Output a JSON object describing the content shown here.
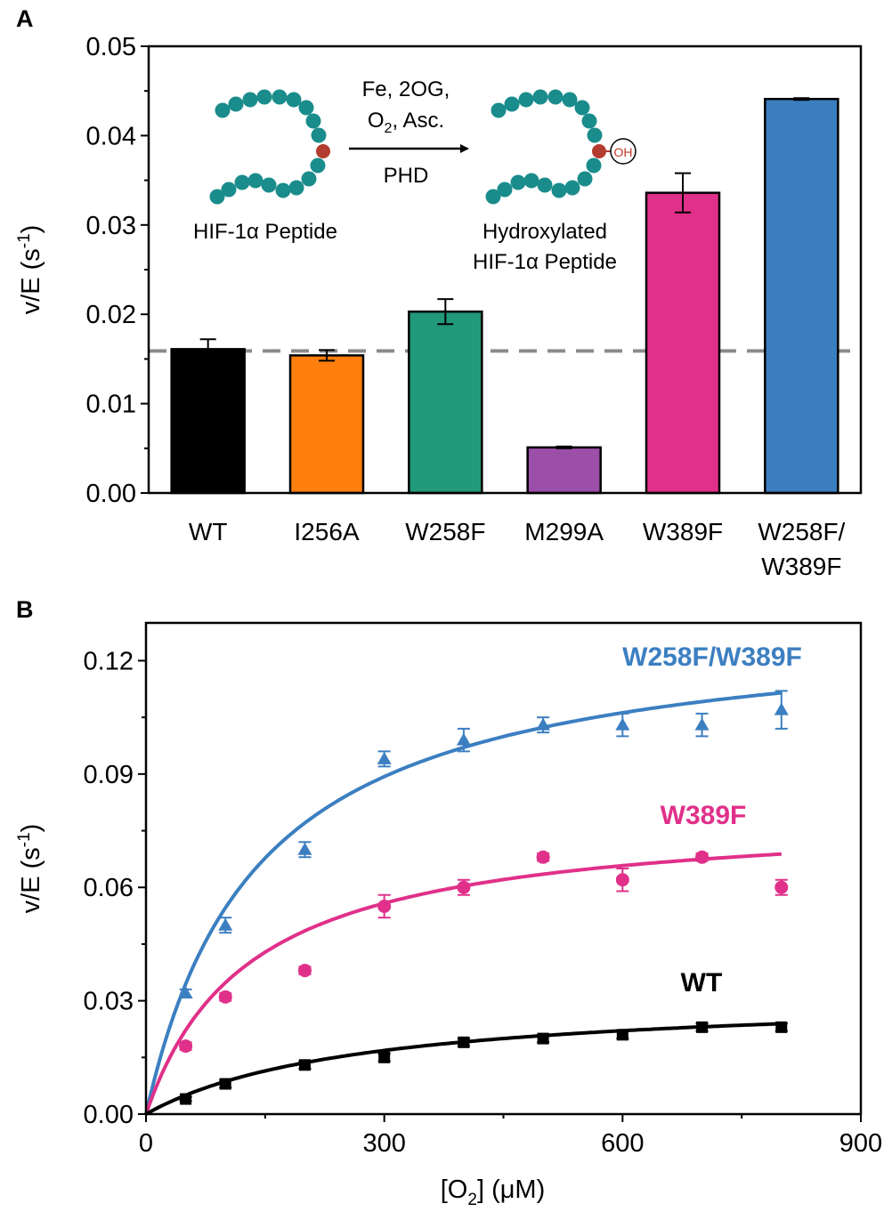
{
  "chart_data": [
    {
      "panel": "A",
      "type": "bar",
      "ylabel": "v/E (s",
      "ylabel_sup": "-1",
      "ylabel_close": ")",
      "ylim": [
        0,
        0.05
      ],
      "yticks": [
        "0.00",
        "0.01",
        "0.02",
        "0.03",
        "0.04",
        "0.05"
      ],
      "categories": [
        "WT",
        "I256A",
        "W258F",
        "M299A",
        "W389F",
        "W258F/W389F"
      ],
      "category_lines": [
        [
          "WT"
        ],
        [
          "I256A"
        ],
        [
          "W258F"
        ],
        [
          "M299A"
        ],
        [
          "W389F"
        ],
        [
          "W258F/",
          "W389F"
        ]
      ],
      "values": [
        0.0161,
        0.0154,
        0.0203,
        0.0051,
        0.0336,
        0.0441
      ],
      "errors": [
        0.0011,
        0.0006,
        0.0014,
        0.0001,
        0.0022,
        0.0001
      ],
      "colors": [
        "#000000",
        "#ff7f0e",
        "#21997a",
        "#9b4fa8",
        "#e0308a",
        "#3c7fc1"
      ],
      "reference_line": 0.0159,
      "scheme": {
        "reagents_line1": "Fe, 2OG,",
        "reagents_o2": "O",
        "reagents_o2_sub": "2",
        "reagents_line2_rest": ", Asc.",
        "enzyme": "PHD",
        "left_label": "HIF-1α Peptide",
        "right_label_1": "Hydroxylated",
        "right_label_2": "HIF-1α Peptide",
        "oh_label": "OH"
      }
    },
    {
      "panel": "B",
      "type": "scatter",
      "xlabel_pre": "[O",
      "xlabel_sub": "2",
      "xlabel_post": "] (μM)",
      "ylabel": "v/E (s",
      "ylabel_sup": "-1",
      "ylabel_close": ")",
      "xlim": [
        0,
        900
      ],
      "ylim": [
        0,
        0.13
      ],
      "xticks": [
        "0",
        "300",
        "600",
        "900"
      ],
      "yticks": [
        "0.00",
        "0.03",
        "0.06",
        "0.09",
        "0.12"
      ],
      "series": [
        {
          "name": "W258F/W389F",
          "color": "#3c7fc1",
          "marker": "triangle",
          "x": [
            50,
            100,
            200,
            300,
            400,
            500,
            600,
            700,
            800
          ],
          "y": [
            0.032,
            0.05,
            0.07,
            0.094,
            0.099,
            0.103,
            0.103,
            0.103,
            0.107
          ],
          "err": [
            0.001,
            0.002,
            0.002,
            0.002,
            0.003,
            0.002,
            0.003,
            0.003,
            0.005
          ],
          "fit": {
            "vmax": 0.131,
            "km": 140
          }
        },
        {
          "name": "W389F",
          "color": "#e0308a",
          "marker": "circle",
          "x": [
            50,
            100,
            200,
            300,
            400,
            500,
            600,
            700,
            800
          ],
          "y": [
            0.018,
            0.031,
            0.038,
            0.055,
            0.06,
            0.068,
            0.062,
            0.068,
            0.06
          ],
          "err": [
            0.001,
            0.001,
            0.001,
            0.003,
            0.002,
            0.001,
            0.003,
            0.001,
            0.002
          ],
          "fit": {
            "vmax": 0.08,
            "km": 130
          }
        },
        {
          "name": "WT",
          "color": "#000000",
          "marker": "square",
          "x": [
            50,
            100,
            200,
            300,
            400,
            500,
            600,
            700,
            800
          ],
          "y": [
            0.004,
            0.008,
            0.013,
            0.015,
            0.019,
            0.02,
            0.021,
            0.023,
            0.023
          ],
          "err": [
            0.0005,
            0.001,
            0.001,
            0.001,
            0.001,
            0.001,
            0.001,
            0.001,
            0.001
          ],
          "fit": {
            "vmax": 0.032,
            "km": 270
          }
        }
      ]
    }
  ]
}
